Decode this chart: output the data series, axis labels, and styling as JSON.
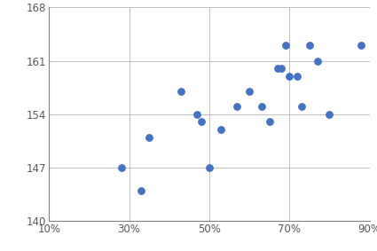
{
  "x_values": [
    0.28,
    0.33,
    0.35,
    0.43,
    0.47,
    0.48,
    0.5,
    0.53,
    0.57,
    0.6,
    0.63,
    0.65,
    0.67,
    0.68,
    0.69,
    0.7,
    0.72,
    0.73,
    0.75,
    0.77,
    0.8,
    0.88
  ],
  "y_values": [
    147,
    144,
    151,
    157,
    154,
    153,
    147,
    152,
    155,
    157,
    155,
    153,
    160,
    160,
    163,
    159,
    159,
    155,
    163,
    161,
    154,
    163
  ],
  "dot_color": "#4472C4",
  "dot_size": 28,
  "xlim": [
    0.1,
    0.9
  ],
  "ylim": [
    140,
    168
  ],
  "xticks": [
    0.1,
    0.3,
    0.5,
    0.7,
    0.9
  ],
  "yticks": [
    140,
    147,
    154,
    161,
    168
  ],
  "grid_color": "#C0C0C0",
  "background_color": "#ffffff",
  "tick_label_color": "#595959",
  "tick_fontsize": 8.5,
  "left_spine_color": "#808080",
  "bottom_spine_color": "#808080"
}
